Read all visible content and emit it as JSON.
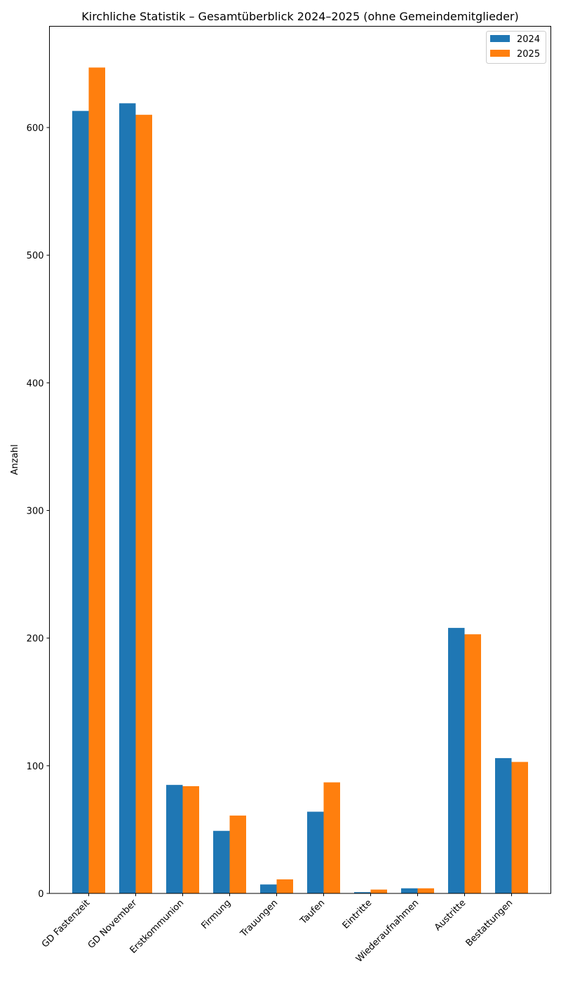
{
  "chart_data": {
    "type": "bar",
    "title": "Kirchliche Statistik – Gesamtüberblick 2024–2025 (ohne Gemeindemitglieder)",
    "xlabel": "",
    "ylabel": "Anzahl",
    "ylim": [
      0,
      680
    ],
    "yticks": [
      0,
      100,
      200,
      300,
      400,
      500,
      600
    ],
    "grid": false,
    "legend_position": "upper right",
    "categories": [
      "GD Fastenzeit",
      "GD November",
      "Erstkommunion",
      "Firmung",
      "Trauungen",
      "Taufen",
      "Eintritte",
      "Wiederaufnahmen",
      "Austritte",
      "Bestattungen"
    ],
    "series": [
      {
        "name": "2024",
        "color": "#1f77b4",
        "values": [
          613,
          619,
          85,
          49,
          7,
          64,
          1,
          4,
          208,
          106
        ]
      },
      {
        "name": "2025",
        "color": "#ff7f0e",
        "values": [
          647,
          610,
          84,
          61,
          11,
          87,
          3,
          4,
          203,
          103
        ]
      }
    ]
  }
}
